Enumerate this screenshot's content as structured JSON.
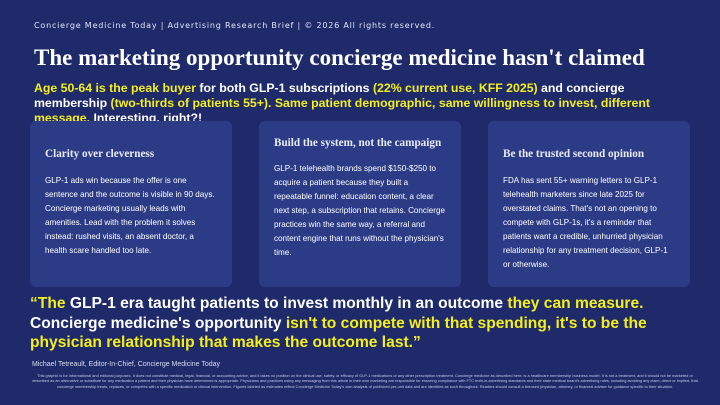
{
  "header": {
    "meta": "Concierge Medicine Today  |  Advertising Research Brief  |  © 2026 All rights reserved."
  },
  "title": "The marketing opportunity concierge medicine hasn't claimed",
  "lede": {
    "p1": "Age 50-64 is the peak buyer",
    "p2": " for both GLP-1 subscriptions ",
    "p3": "(22% current use, KFF 2025)",
    "p4": " and concierge membership ",
    "p5": "(two-thirds of patients 55+). Same patient demographic, same willingness to invest, different message.",
    "p6": " Interesting, right?!"
  },
  "cards": [
    {
      "title": "Clarity over cleverness",
      "body": "GLP-1 ads win because the offer is one sentence and the outcome is visible in 90 days. Concierge marketing usually leads with amenities. Lead with the problem it solves instead: rushed visits, an absent doctor, a health scare handled too late."
    },
    {
      "title": "Build the system, not the campaign",
      "body": "GLP-1 telehealth brands spend $150-$250 to acquire a patient because they built a repeatable funnel: education content, a clear next step, a subscription that retains. Concierge practices win the same way, a referral and content engine that runs without the physician's time."
    },
    {
      "title": "Be the trusted second opinion",
      "body": "FDA has sent 55+ warning letters to GLP-1 telehealth marketers since late 2025 for overstated claims. That's not an opening to compete with GLP-1s, it's a reminder that patients want a credible, unhurried physician relationship for any treatment decision, GLP-1 or otherwise."
    }
  ],
  "quote": {
    "q1": "“The ",
    "q2": "GLP-1 era taught patients to invest monthly in an outcome",
    "q3": " they can measure. ",
    "q4": "Concierge medicine's opportunity",
    "q5": " isn't to compete with that spending, it's to be the physician relationship that makes the outcome last.”"
  },
  "attribution": "Michael Tetreault, Editor-In-Chief, Concierge Medicine Today",
  "disclaimer": "This graphic is for informational and editorial purposes. It does not constitute medical, legal, financial, or accounting advice, and it takes no position on the clinical use, safety, or efficacy of GLP-1 medications or any other prescription treatment. Concierge medicine as described here, is a healthcare membership business model. It is not a treatment, and it should not be marketed or described as an alternative or substitute for any medication a patient and their physician have determined is appropriate. Physicians and practices using any messaging from this article in their own marketing are responsible for ensuring compliance with FTC truth-in-advertising standards and their state medical board's advertising rules, including avoiding any claim, direct or implied, that concierge membership treats, replaces, or competes with a specific medication or clinical intervention. Figures labeled as estimates reflect Concierge Medicine Today's own analysis of published per-unit data and are identified as such throughout. Readers should consult a licensed physician, attorney, or financial adviser for guidance specific to their situation."
}
